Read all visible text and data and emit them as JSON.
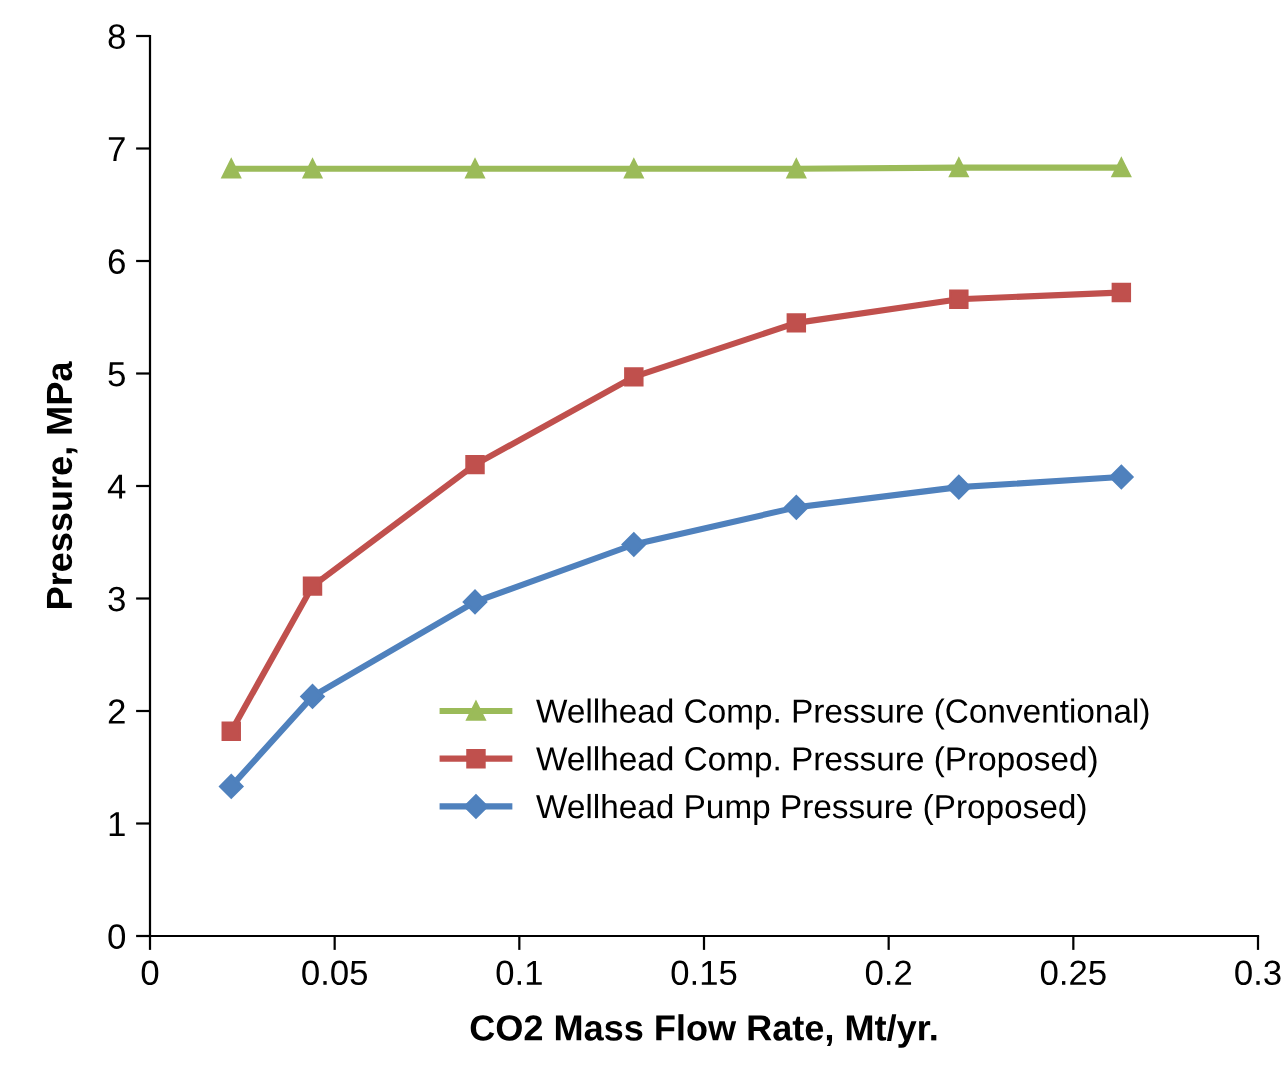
{
  "chart_data": {
    "type": "line",
    "xlabel": "CO2 Mass Flow Rate, Mt/yr.",
    "ylabel": "Pressure, MPa",
    "x": [
      0.022,
      0.044,
      0.088,
      0.131,
      0.175,
      0.219,
      0.263
    ],
    "series": [
      {
        "name": "Wellhead Comp. Pressure (Conventional)",
        "color": "#9bbb59",
        "marker": "triangle",
        "values": [
          6.82,
          6.82,
          6.82,
          6.82,
          6.82,
          6.83,
          6.83
        ]
      },
      {
        "name": "Wellhead Comp. Pressure (Proposed)",
        "color": "#c0504d",
        "marker": "square",
        "values": [
          1.82,
          3.11,
          4.19,
          4.97,
          5.45,
          5.66,
          5.72
        ]
      },
      {
        "name": "Wellhead Pump Pressure (Proposed)",
        "color": "#4f81bd",
        "marker": "diamond",
        "values": [
          1.33,
          2.13,
          2.97,
          3.48,
          3.81,
          3.99,
          4.08
        ]
      }
    ],
    "xlim": [
      0,
      0.3
    ],
    "xticks": [
      0,
      0.05,
      0.1,
      0.15,
      0.2,
      0.25,
      0.3
    ],
    "ylim": [
      0,
      8
    ],
    "yticks": [
      0,
      1,
      2,
      3,
      4,
      5,
      6,
      7,
      8
    ],
    "grid": false,
    "legend": "bottom right",
    "line_style": "solid"
  }
}
